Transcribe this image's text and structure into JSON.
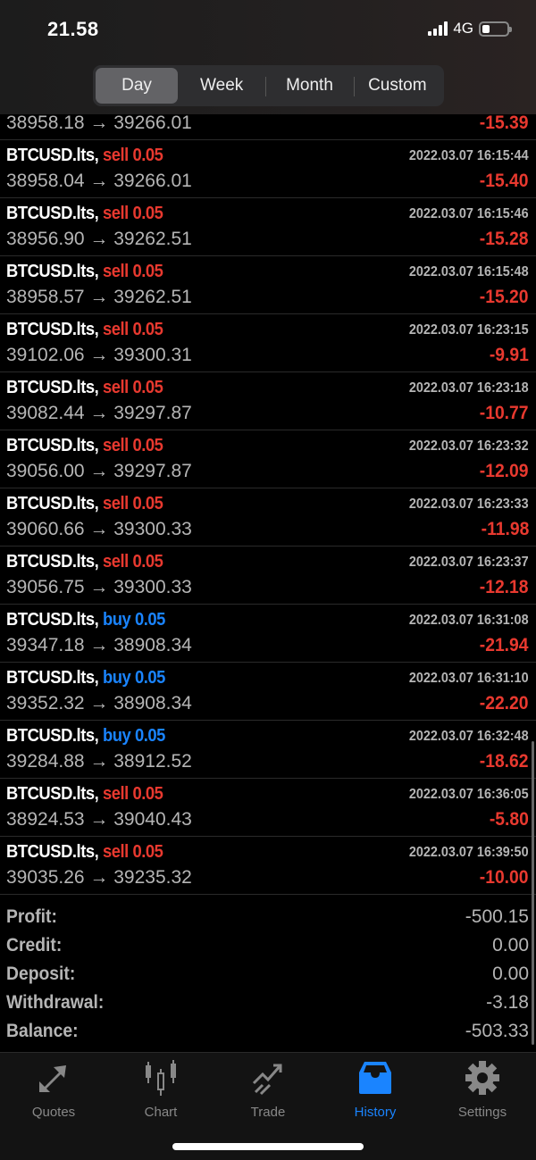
{
  "status_bar": {
    "time": "21.58",
    "network": "4G",
    "battery_level": 0.3
  },
  "period_tabs": [
    {
      "label": "Day",
      "active": true
    },
    {
      "label": "Week"
    },
    {
      "label": "Month"
    },
    {
      "label": "Custom"
    }
  ],
  "partial_row": {
    "prices": "38958.18 → 39266.01",
    "profit": "-15.39"
  },
  "deals": [
    {
      "symbol": "BTCUSD.lts,",
      "side": "sell 0.05",
      "type": "sell",
      "time": "2022.03.07 16:15:44",
      "prices": "38958.04 → 39266.01",
      "profit": "-15.40"
    },
    {
      "symbol": "BTCUSD.lts,",
      "side": "sell 0.05",
      "type": "sell",
      "time": "2022.03.07 16:15:46",
      "prices": "38956.90 → 39262.51",
      "profit": "-15.28"
    },
    {
      "symbol": "BTCUSD.lts,",
      "side": "sell 0.05",
      "type": "sell",
      "time": "2022.03.07 16:15:48",
      "prices": "38958.57 → 39262.51",
      "profit": "-15.20"
    },
    {
      "symbol": "BTCUSD.lts,",
      "side": "sell 0.05",
      "type": "sell",
      "time": "2022.03.07 16:23:15",
      "prices": "39102.06 → 39300.31",
      "profit": "-9.91"
    },
    {
      "symbol": "BTCUSD.lts,",
      "side": "sell 0.05",
      "type": "sell",
      "time": "2022.03.07 16:23:18",
      "prices": "39082.44 → 39297.87",
      "profit": "-10.77"
    },
    {
      "symbol": "BTCUSD.lts,",
      "side": "sell 0.05",
      "type": "sell",
      "time": "2022.03.07 16:23:32",
      "prices": "39056.00 → 39297.87",
      "profit": "-12.09"
    },
    {
      "symbol": "BTCUSD.lts,",
      "side": "sell 0.05",
      "type": "sell",
      "time": "2022.03.07 16:23:33",
      "prices": "39060.66 → 39300.33",
      "profit": "-11.98"
    },
    {
      "symbol": "BTCUSD.lts,",
      "side": "sell 0.05",
      "type": "sell",
      "time": "2022.03.07 16:23:37",
      "prices": "39056.75 → 39300.33",
      "profit": "-12.18"
    },
    {
      "symbol": "BTCUSD.lts,",
      "side": "buy 0.05",
      "type": "buy",
      "time": "2022.03.07 16:31:08",
      "prices": "39347.18 → 38908.34",
      "profit": "-21.94"
    },
    {
      "symbol": "BTCUSD.lts,",
      "side": "buy 0.05",
      "type": "buy",
      "time": "2022.03.07 16:31:10",
      "prices": "39352.32 → 38908.34",
      "profit": "-22.20"
    },
    {
      "symbol": "BTCUSD.lts,",
      "side": "buy 0.05",
      "type": "buy",
      "time": "2022.03.07 16:32:48",
      "prices": "39284.88 → 38912.52",
      "profit": "-18.62"
    },
    {
      "symbol": "BTCUSD.lts,",
      "side": "sell 0.05",
      "type": "sell",
      "time": "2022.03.07 16:36:05",
      "prices": "38924.53 → 39040.43",
      "profit": "-5.80"
    },
    {
      "symbol": "BTCUSD.lts,",
      "side": "sell 0.05",
      "type": "sell",
      "time": "2022.03.07 16:39:50",
      "prices": "39035.26 → 39235.32",
      "profit": "-10.00"
    }
  ],
  "summary": [
    {
      "label": "Profit:",
      "value": "-500.15"
    },
    {
      "label": "Credit:",
      "value": "0.00"
    },
    {
      "label": "Deposit:",
      "value": "0.00"
    },
    {
      "label": "Withdrawal:",
      "value": "-3.18"
    },
    {
      "label": "Balance:",
      "value": "-503.33"
    }
  ],
  "tab_bar": [
    {
      "label": "Quotes",
      "icon": "quotes-arrows-icon"
    },
    {
      "label": "Chart",
      "icon": "candlestick-icon"
    },
    {
      "label": "Trade",
      "icon": "trade-trend-icon"
    },
    {
      "label": "History",
      "icon": "inbox-tray-icon",
      "active": true
    },
    {
      "label": "Settings",
      "icon": "gear-icon"
    }
  ],
  "colors": {
    "sell": "#e8392f",
    "buy": "#1a84ff",
    "active_tab": "#1a84ff"
  }
}
